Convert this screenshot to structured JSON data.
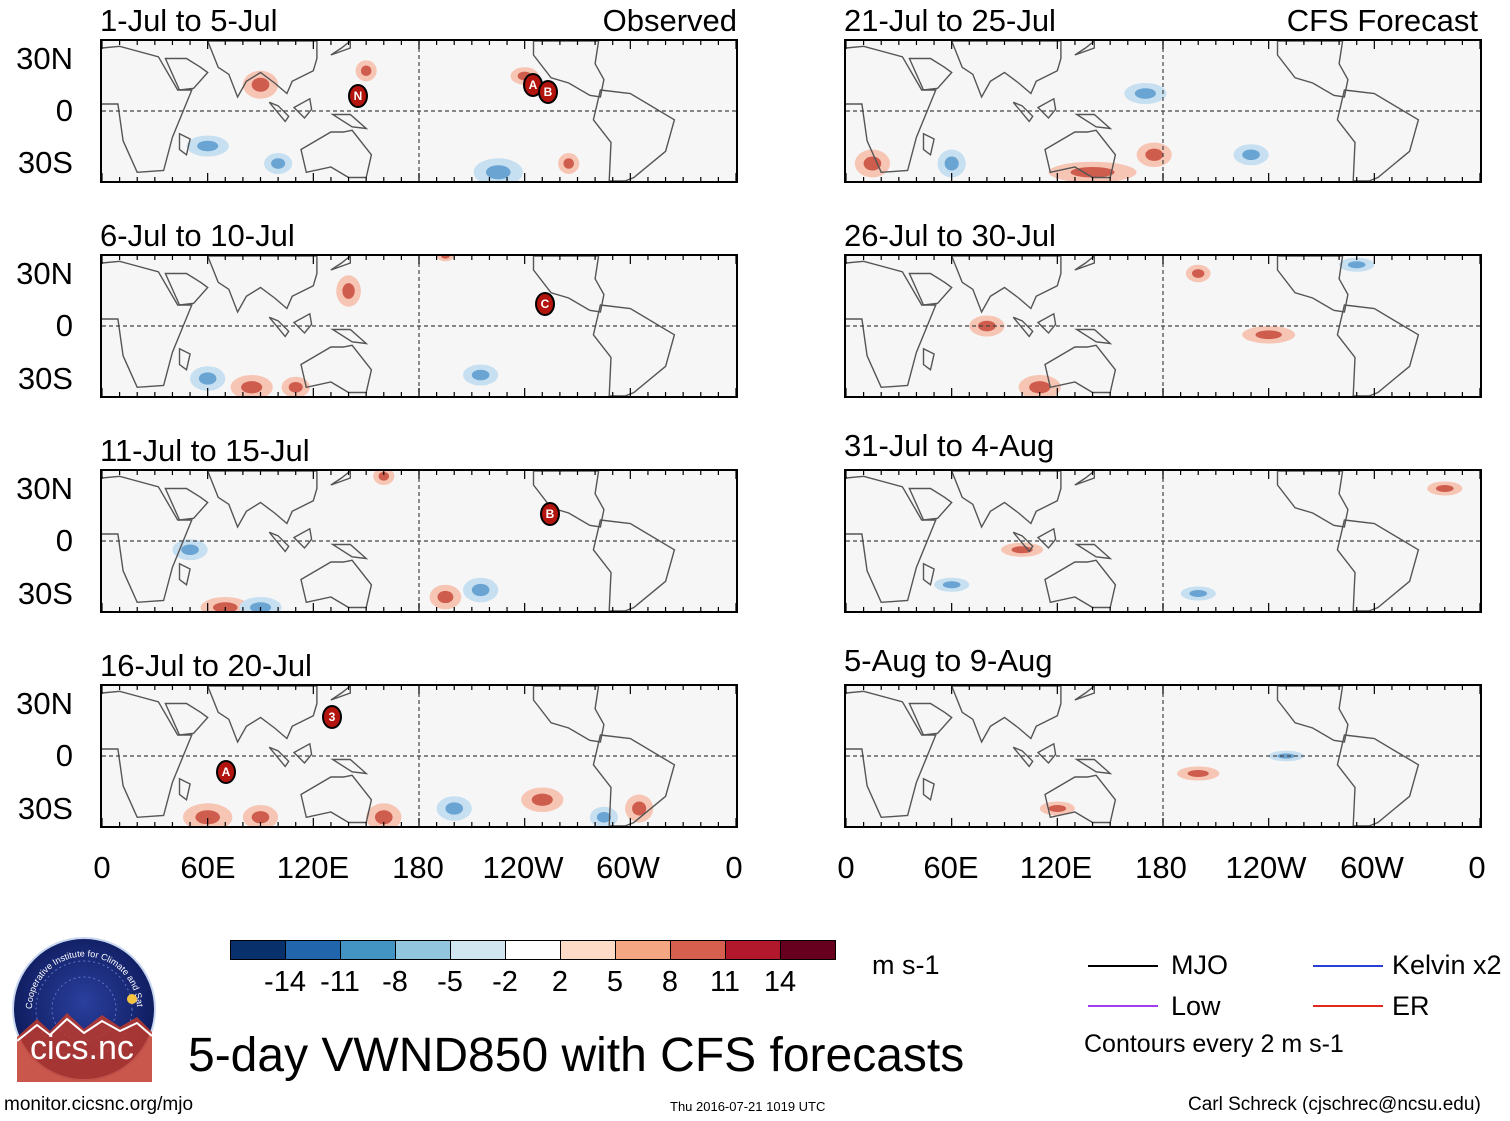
{
  "colors": {
    "positive_strong": "#c0392b",
    "positive_light": "#f7c5b4",
    "negative_strong": "#4a90c8",
    "negative_light": "#c6dff1",
    "mjo": "#000000",
    "kelvin": "#2a3fd4",
    "low": "#a03cf0",
    "er": "#e02a1c"
  },
  "panels": {
    "left": [
      {
        "title": "1-Jul to 5-Jul",
        "source": "Observed"
      },
      {
        "title": "6-Jul to 10-Jul",
        "source": ""
      },
      {
        "title": "11-Jul to 15-Jul",
        "source": ""
      },
      {
        "title": "16-Jul to 20-Jul",
        "source": ""
      }
    ],
    "right": [
      {
        "title": "21-Jul to 25-Jul",
        "source": "CFS Forecast"
      },
      {
        "title": "26-Jul to 30-Jul",
        "source": ""
      },
      {
        "title": "31-Jul to 4-Aug",
        "source": ""
      },
      {
        "title": "5-Aug to 9-Aug",
        "source": ""
      }
    ]
  },
  "storm_markers": {
    "p0": [
      "N",
      "A",
      "B"
    ],
    "p1": [
      "C"
    ],
    "p2": [
      "B"
    ],
    "p3": [
      "3",
      "A"
    ]
  },
  "axes": {
    "lat_labels": [
      "30N",
      "0",
      "30S"
    ],
    "lon_labels": [
      "0",
      "60E",
      "120E",
      "180",
      "120W",
      "60W",
      "0"
    ]
  },
  "chart_data": {
    "type": "heatmap",
    "variable": "5-day VWND850",
    "units": "m s-1",
    "x_range": [
      0,
      360
    ],
    "y_range": [
      -40,
      40
    ],
    "x_ticks": [
      0,
      60,
      120,
      180,
      240,
      300,
      360
    ],
    "y_ticks": [
      30,
      0,
      -30
    ],
    "colorbar_levels": [
      -14,
      -11,
      -8,
      -5,
      -2,
      2,
      5,
      8,
      11,
      14
    ],
    "colorbar_colors": [
      "#08306b",
      "#2166ac",
      "#4393c3",
      "#92c5de",
      "#d1e5f0",
      "#ffffff",
      "#fddbc7",
      "#f4a582",
      "#d6604d",
      "#b2182b",
      "#67001f"
    ]
  },
  "colorbar": {
    "labels": [
      "-14",
      "-11",
      "-8",
      "-5",
      "-2",
      "2",
      "5",
      "8",
      "11",
      "14"
    ],
    "units": "m s-1"
  },
  "legend": {
    "mjo": "MJO",
    "kelvin": "Kelvin x2",
    "low": "Low",
    "er": "ER",
    "contours": "Contours every 2 m s-1"
  },
  "footer": {
    "logo_arc": "Cooperative Institute for Climate and Satellites",
    "logo_text": "cics.nc",
    "title": "5-day VWND850 with CFS forecasts",
    "url": "monitor.cicsnc.org/mjo",
    "timestamp": "Thu 2016-07-21 1019 UTC",
    "credit": "Carl Schreck (cjschrec@ncsu.edu)"
  }
}
